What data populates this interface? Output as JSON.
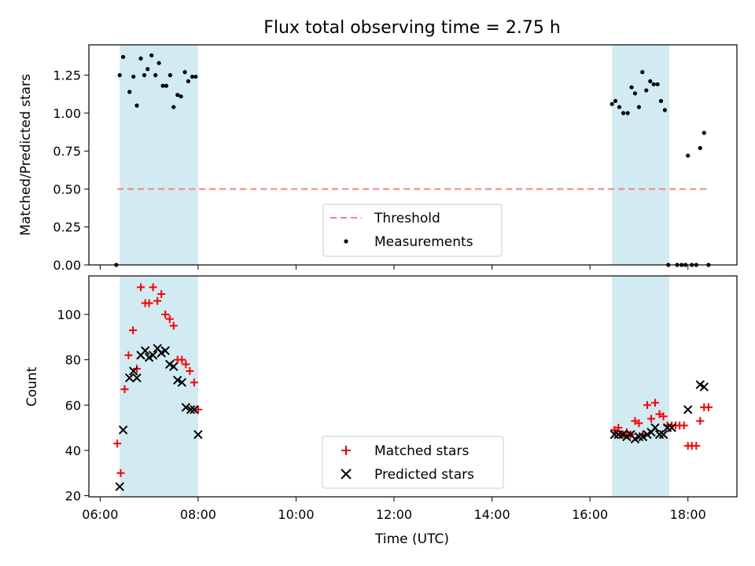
{
  "chart_data": {
    "title": "Flux total observing time = 2.75 h",
    "xlabel": "Time (UTC)",
    "x_tick_labels": [
      "06:00",
      "08:00",
      "10:00",
      "12:00",
      "14:00",
      "16:00",
      "18:00"
    ],
    "x_ticks_hours": [
      6,
      8,
      10,
      12,
      14,
      16,
      18
    ],
    "xlim_hours": [
      5.77,
      19.0
    ],
    "shaded_intervals_hours": [
      [
        6.4,
        8.0
      ],
      [
        16.45,
        17.62
      ]
    ],
    "colors": {
      "shade": "#add8e6",
      "threshold": "#ff7f7f",
      "measurement": "#000000",
      "matched": "#ff0000",
      "predicted": "#000000"
    },
    "panels": [
      {
        "type": "scatter",
        "ylabel": "Matched/Predicted stars",
        "ylim": [
          0,
          1.45
        ],
        "y_ticks": [
          0.0,
          0.25,
          0.5,
          0.75,
          1.0,
          1.25
        ],
        "y_tick_labels": [
          "0.00",
          "0.25",
          "0.50",
          "0.75",
          "1.00",
          "1.25"
        ],
        "legend_position": "lower-center",
        "series": [
          {
            "name": "Threshold",
            "kind": "line",
            "style": "dashed",
            "x": [
              6.35,
              18.4
            ],
            "y": [
              0.5,
              0.5
            ]
          },
          {
            "name": "Measurements",
            "kind": "points",
            "x": [
              6.33,
              6.4,
              6.47,
              6.6,
              6.68,
              6.75,
              6.83,
              6.9,
              6.97,
              7.05,
              7.13,
              7.2,
              7.28,
              7.35,
              7.43,
              7.5,
              7.58,
              7.65,
              7.73,
              7.8,
              7.88,
              7.95,
              16.45,
              16.52,
              16.6,
              16.68,
              16.77,
              16.85,
              16.92,
              17.0,
              17.07,
              17.15,
              17.23,
              17.3,
              17.38,
              17.45,
              17.53,
              17.6,
              17.78,
              17.87,
              17.95,
              18.0,
              18.08,
              18.17,
              18.25,
              18.33,
              18.42
            ],
            "y": [
              0.0,
              1.25,
              1.37,
              1.14,
              1.24,
              1.05,
              1.36,
              1.25,
              1.29,
              1.38,
              1.25,
              1.33,
              1.18,
              1.18,
              1.25,
              1.04,
              1.12,
              1.11,
              1.27,
              1.21,
              1.24,
              1.24,
              1.06,
              1.08,
              1.04,
              1.0,
              1.0,
              1.17,
              1.13,
              1.04,
              1.27,
              1.15,
              1.21,
              1.19,
              1.19,
              1.08,
              1.02,
              0.0,
              0.0,
              0.0,
              0.0,
              0.72,
              0.0,
              0.0,
              0.77,
              0.87,
              0.0
            ]
          }
        ]
      },
      {
        "type": "scatter",
        "ylabel": "Count",
        "ylim": [
          19.5,
          117
        ],
        "y_ticks": [
          20,
          40,
          60,
          80,
          100
        ],
        "y_tick_labels": [
          "20",
          "40",
          "60",
          "80",
          "100"
        ],
        "legend_position": "lower-center",
        "series": [
          {
            "name": "Matched stars",
            "marker": "plus",
            "x": [
              6.35,
              6.42,
              6.5,
              6.58,
              6.67,
              6.75,
              6.83,
              6.92,
              7.0,
              7.08,
              7.17,
              7.25,
              7.33,
              7.42,
              7.5,
              7.58,
              7.67,
              7.75,
              7.83,
              7.92,
              8.0,
              16.5,
              16.58,
              16.67,
              16.75,
              16.83,
              16.92,
              17.0,
              17.08,
              17.17,
              17.25,
              17.33,
              17.42,
              17.5,
              17.58,
              17.67,
              17.75,
              17.83,
              17.92,
              18.0,
              18.08,
              18.17,
              18.25,
              18.33,
              18.42
            ],
            "y": [
              43,
              30,
              67,
              82,
              93,
              76,
              112,
              105,
              105,
              112,
              106,
              109,
              100,
              98,
              95,
              80,
              80,
              78,
              75,
              70,
              58,
              49,
              50,
              47,
              48,
              47,
              53,
              52,
              47,
              60,
              54,
              61,
              56,
              55,
              51,
              51,
              51,
              51,
              51,
              42,
              42,
              42,
              53,
              59,
              59
            ]
          },
          {
            "name": "Predicted stars",
            "marker": "x",
            "x": [
              6.4,
              6.47,
              6.6,
              6.68,
              6.75,
              6.83,
              6.92,
              7.0,
              7.08,
              7.17,
              7.25,
              7.33,
              7.42,
              7.5,
              7.58,
              7.67,
              7.75,
              7.85,
              7.92,
              8.0,
              16.5,
              16.58,
              16.67,
              16.75,
              16.83,
              16.92,
              17.0,
              17.08,
              17.17,
              17.25,
              17.33,
              17.42,
              17.5,
              17.58,
              17.67,
              18.0,
              18.25,
              18.33
            ],
            "y": [
              24,
              49,
              72,
              75,
              72,
              82,
              84,
              81,
              82,
              85,
              83,
              84,
              78,
              77,
              71,
              70,
              59,
              58,
              58,
              47,
              47,
              47,
              47,
              46,
              47,
              45,
              46,
              46,
              47,
              48,
              50,
              47,
              47,
              50,
              50,
              58,
              69,
              68
            ]
          }
        ]
      }
    ]
  }
}
